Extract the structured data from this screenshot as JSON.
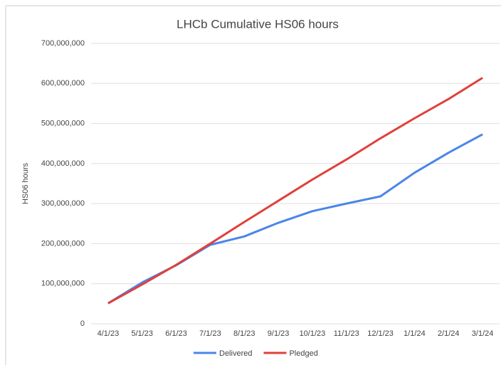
{
  "chart_data": {
    "type": "line",
    "title": "LHCb Cumulative HS06 hours",
    "y_label": "HS06 hours",
    "categories": [
      "4/1/23",
      "5/1/23",
      "6/1/23",
      "7/1/23",
      "8/1/23",
      "9/1/23",
      "10/1/23",
      "11/1/23",
      "12/1/23",
      "1/1/24",
      "2/1/24",
      "3/1/24"
    ],
    "series": [
      {
        "name": "Delivered",
        "color": "#4a86e8",
        "values": [
          51000000,
          103000000,
          146000000,
          197000000,
          218000000,
          252000000,
          281000000,
          300000000,
          318000000,
          377000000,
          427000000,
          473000000
        ]
      },
      {
        "name": "Pledged",
        "color": "#e0403a",
        "values": [
          51000000,
          98000000,
          147000000,
          200000000,
          254000000,
          307000000,
          360000000,
          410000000,
          463000000,
          513000000,
          561000000,
          614000000
        ]
      }
    ],
    "ylim": [
      0,
      700000000
    ],
    "yticks": [
      0,
      {
        "value": 100000000,
        "label": "100,000,000"
      },
      {
        "value": 200000000,
        "label": "200,000,000"
      },
      {
        "value": 300000000,
        "label": "300,000,000"
      },
      {
        "value": 400000000,
        "label": "400,000,000"
      },
      {
        "value": 500000000,
        "label": "500,000,000"
      },
      {
        "value": 600000000,
        "label": "600,000,000"
      },
      {
        "value": 700000000,
        "label": "700,000,000"
      }
    ],
    "grid": true,
    "legend": "bottom"
  }
}
